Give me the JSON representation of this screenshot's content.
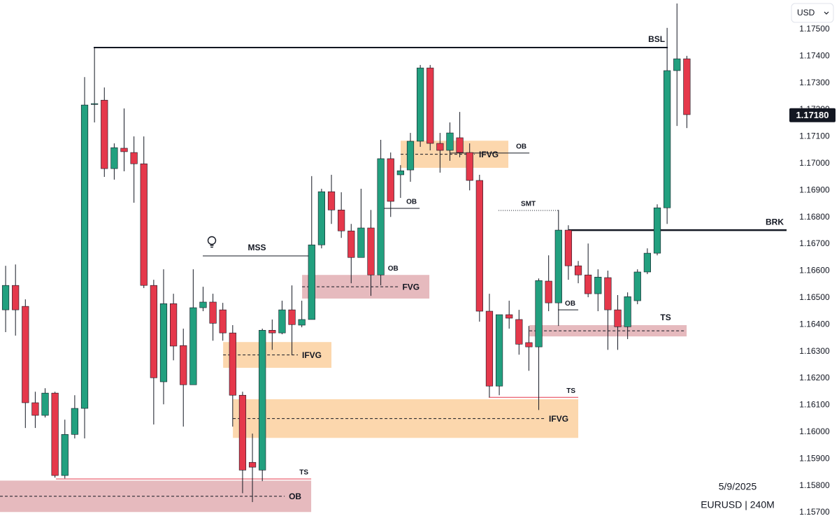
{
  "chart_data": {
    "type": "candlestick",
    "symbol_label": "EURUSD | 240M",
    "date_label": "5/9/2025",
    "currency": "USD",
    "up_color": "#22a07f",
    "down_color": "#e5384b",
    "xlim": [
      -0.57,
      79.1
    ],
    "ylim": [
      1.15635,
      1.17609
    ],
    "yticks": [
      {
        "value": 1.175,
        "label": "1.17500"
      },
      {
        "value": 1.174,
        "label": "1.17400"
      },
      {
        "value": 1.173,
        "label": "1.17300"
      },
      {
        "value": 1.172,
        "label": "1.17200"
      },
      {
        "value": 1.171,
        "label": "1.17100"
      },
      {
        "value": 1.17,
        "label": "1.17000"
      },
      {
        "value": 1.169,
        "label": "1.16900"
      },
      {
        "value": 1.168,
        "label": "1.16800"
      },
      {
        "value": 1.167,
        "label": "1.16700"
      },
      {
        "value": 1.166,
        "label": "1.16600"
      },
      {
        "value": 1.165,
        "label": "1.16500"
      },
      {
        "value": 1.164,
        "label": "1.16400"
      },
      {
        "value": 1.163,
        "label": "1.16300"
      },
      {
        "value": 1.162,
        "label": "1.16200"
      },
      {
        "value": 1.161,
        "label": "1.16100"
      },
      {
        "value": 1.16,
        "label": "1.16000"
      },
      {
        "value": 1.159,
        "label": "1.15900"
      },
      {
        "value": 1.158,
        "label": "1.15800"
      },
      {
        "value": 1.157,
        "label": "1.15700"
      }
    ],
    "current_price": {
      "value": 1.1718,
      "label": "1.17180"
    },
    "open": [
      1.16455,
      1.16546,
      1.16468,
      1.16109,
      1.16062,
      1.16145,
      1.15838,
      1.15991,
      1.16088,
      1.17221,
      1.17236,
      1.16981,
      1.17057,
      1.17041,
      1.16999,
      1.16546,
      1.16187,
      1.16478,
      1.16322,
      1.16176,
      1.16463,
      1.16484,
      1.16455,
      1.16369,
      1.16137,
      1.15887,
      1.15858,
      1.16379,
      1.16369,
      1.16455,
      1.16398,
      1.16419,
      1.16697,
      1.16895,
      1.16827,
      1.16749,
      1.1665,
      1.1676,
      1.16585,
      1.17018,
      1.16958,
      1.16976,
      1.17083,
      1.17356,
      1.17075,
      1.17049,
      1.17096,
      1.17041,
      1.16937,
      1.1645,
      1.16171,
      1.16437,
      1.16419,
      1.16333,
      1.16317,
      1.16562,
      1.16481,
      1.16752,
      1.16619,
      1.16585,
      1.16515,
      1.16575,
      1.16455,
      1.16392,
      1.16489,
      1.16596,
      1.16666,
      1.16835,
      1.17346,
      1.1739
    ],
    "high": [
      1.16619,
      1.16624,
      1.16494,
      1.1615,
      1.16163,
      1.1615,
      1.16046,
      1.16137,
      1.17322,
      1.17432,
      1.17283,
      1.17075,
      1.17205,
      1.17101,
      1.17101,
      1.16567,
      1.16606,
      1.16515,
      1.16385,
      1.16606,
      1.16541,
      1.16515,
      1.16481,
      1.16398,
      1.1615,
      1.15994,
      1.16385,
      1.16419,
      1.16489,
      1.16546,
      1.16489,
      1.16953,
      1.16906,
      1.16958,
      1.16893,
      1.16775,
      1.16906,
      1.16827,
      1.17088,
      1.17041,
      1.16994,
      1.17114,
      1.17367,
      1.17367,
      1.17114,
      1.17153,
      1.17192,
      1.17075,
      1.16958,
      1.16515,
      1.16437,
      1.16489,
      1.16455,
      1.16395,
      1.16572,
      1.16658,
      1.16827,
      1.1677,
      1.16637,
      1.16702,
      1.16606,
      1.16601,
      1.1651,
      1.1652,
      1.16606,
      1.16684,
      1.16848,
      1.17505,
      1.17596,
      1.17401
    ],
    "low": [
      1.16372,
      1.16359,
      1.16015,
      1.16015,
      1.16054,
      1.1583,
      1.15827,
      1.15976,
      1.15976,
      1.17153,
      1.1695,
      1.1694,
      1.16971,
      1.16854,
      1.16536,
      1.16028,
      1.16103,
      1.16267,
      1.1602,
      1.16176,
      1.1645,
      1.1634,
      1.1634,
      1.1602,
      1.15772,
      1.15739,
      1.15817,
      1.16306,
      1.16364,
      1.16286,
      1.1639,
      1.16419,
      1.16684,
      1.16775,
      1.16723,
      1.16554,
      1.1665,
      1.16507,
      1.16546,
      1.16801,
      1.16872,
      1.16932,
      1.17062,
      1.17049,
      1.16966,
      1.1701,
      1.17023,
      1.169,
      1.16411,
      1.16129,
      1.16137,
      1.16385,
      1.16288,
      1.16228,
      1.16082,
      1.1645,
      1.16395,
      1.16567,
      1.16554,
      1.16502,
      1.1645,
      1.16306,
      1.16306,
      1.16346,
      1.16476,
      1.16588,
      1.16658,
      1.16775,
      1.1714,
      1.17132
    ],
    "close": [
      1.16546,
      1.16455,
      1.16109,
      1.16062,
      1.16145,
      1.15838,
      1.15991,
      1.16088,
      1.17218,
      1.17223,
      1.16981,
      1.17059,
      1.17044,
      1.16999,
      1.16546,
      1.16202,
      1.16478,
      1.1632,
      1.16176,
      1.16463,
      1.16484,
      1.16405,
      1.16369,
      1.16137,
      1.15858,
      1.15869,
      1.16379,
      1.16369,
      1.16455,
      1.164,
      1.16419,
      1.16697,
      1.16895,
      1.16827,
      1.16749,
      1.1665,
      1.1676,
      1.16585,
      1.17018,
      1.16859,
      1.16973,
      1.17083,
      1.17356,
      1.17075,
      1.17049,
      1.17114,
      1.17041,
      1.16937,
      1.1645,
      1.16171,
      1.16437,
      1.16424,
      1.16327,
      1.16317,
      1.16564,
      1.16481,
      1.16752,
      1.16619,
      1.16585,
      1.16515,
      1.16577,
      1.16455,
      1.16392,
      1.16504,
      1.16596,
      1.16666,
      1.16835,
      1.17346,
      1.1739,
      1.17182
    ],
    "zones": [
      {
        "label": "OB",
        "top": 1.15819,
        "bottom": 1.15702,
        "start": -0.57,
        "end": 30.95,
        "color": "#e3b3b7",
        "label_position": "inside"
      },
      {
        "label": "IFVG",
        "top": 1.16122,
        "bottom": 1.15978,
        "start": 23.02,
        "end": 58.0,
        "color": "#fcd3a4",
        "label_position": "inside"
      },
      {
        "label": "IFVG",
        "top": 1.16335,
        "bottom": 1.16239,
        "start": 22.03,
        "end": 33.0,
        "color": "#fcd3a4",
        "label_position": "inside"
      },
      {
        "label": "FVG",
        "top": 1.16585,
        "bottom": 1.16497,
        "start": 30.03,
        "end": 42.92,
        "color": "#e3b3b7",
        "label_position": "inside"
      },
      {
        "label": "IFVG",
        "top": 1.17085,
        "bottom": 1.16984,
        "start": 40.01,
        "end": 50.92,
        "color": "#fcd3a4",
        "label_position": "inside"
      },
      {
        "label": "TS",
        "top": 1.16398,
        "bottom": 1.16356,
        "start": 53.05,
        "end": 68.98,
        "color": "#e3b3b7",
        "label_position": "above"
      }
    ],
    "levels": [
      {
        "label": "BSL",
        "price": 1.17432,
        "start": 8.92,
        "end": 67.07,
        "style": "solid",
        "label_align": "right"
      },
      {
        "label": "BRK",
        "price": 1.16752,
        "start": 57.01,
        "end": 79.1,
        "style": "thick",
        "label_align": "right"
      },
      {
        "label": "MSS",
        "price": 1.16656,
        "start": 19.97,
        "end": 30.95,
        "style": "thin",
        "label_align": "center"
      },
      {
        "label": "OB",
        "price": 1.16833,
        "start": 37.96,
        "end": 41.93,
        "style": "thin",
        "label_align": "right"
      },
      {
        "label": "OB",
        "price": 1.17039,
        "start": 44.97,
        "end": 53.05,
        "style": "thin",
        "label_align": "right"
      },
      {
        "label": "OB",
        "price": 1.16455,
        "start": 55.95,
        "end": 58.0,
        "style": "thin",
        "label_align": "right"
      },
      {
        "label": "TS",
        "price": 1.15825,
        "start": 5.1,
        "end": 30.95,
        "style": "red-thin",
        "label_align": "right"
      },
      {
        "label": "TS",
        "price": 1.16129,
        "start": 48.94,
        "end": 58.0,
        "style": "red-thin",
        "label_align": "right"
      },
      {
        "label": "SMT",
        "price": 1.16825,
        "start": 49.93,
        "end": 55.95,
        "style": "dotted",
        "label_align": "center"
      },
      {
        "label": "OB",
        "price": 1.16585,
        "start": 38.5,
        "end": 40.0,
        "style": "none",
        "label_align": "center"
      }
    ]
  }
}
